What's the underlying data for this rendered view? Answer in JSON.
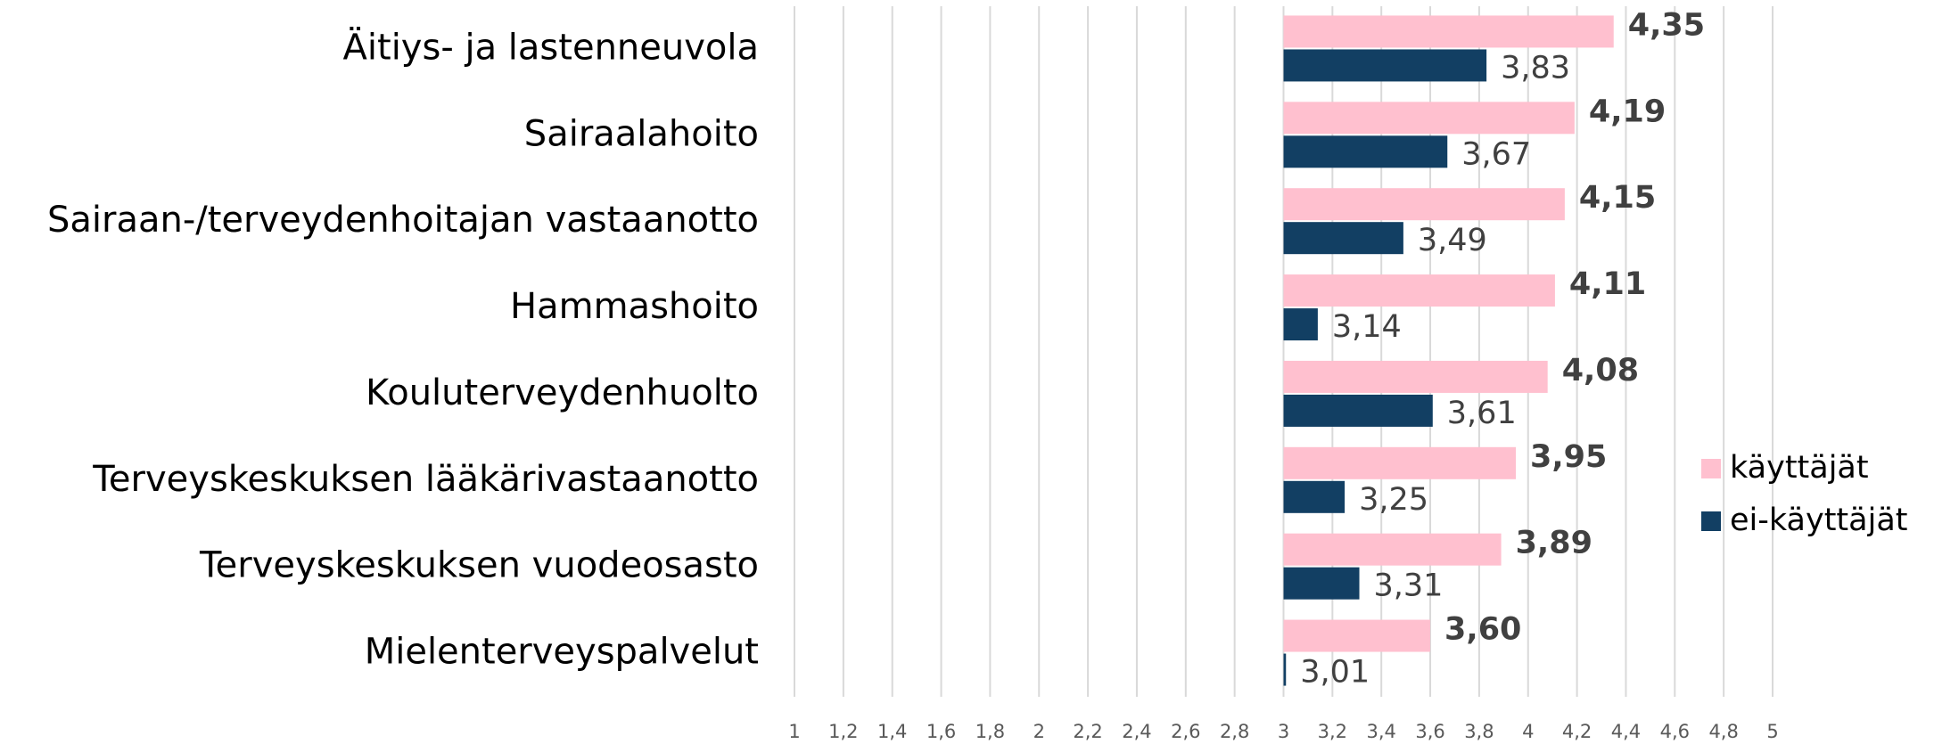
{
  "chart_data": {
    "type": "barh",
    "categories": [
      "Äitiys- ja lastenneuvola",
      "Sairaalahoito",
      "Sairaan-/terveydenhoitajan vastaanotto",
      "Hammashoito",
      "Kouluterveydenhuolto",
      "Terveyskeskuksen lääkärivastaanotto",
      "Terveyskeskuksen vuodeosasto",
      "Mielenterveyspalvelut"
    ],
    "series": [
      {
        "name": "käyttäjät",
        "color": "#ffc0cf",
        "values": [
          4.35,
          4.19,
          4.15,
          4.11,
          4.08,
          3.95,
          3.89,
          3.6
        ],
        "value_labels": [
          "4,35",
          "4,19",
          "4,15",
          "4,11",
          "4,08",
          "3,95",
          "3,89",
          "3,60"
        ]
      },
      {
        "name": "ei-käyttäjät",
        "color": "#123f63",
        "values": [
          3.83,
          3.67,
          3.49,
          3.14,
          3.61,
          3.25,
          3.31,
          3.01
        ],
        "value_labels": [
          "3,83",
          "3,67",
          "3,49",
          "3,14",
          "3,61",
          "3,25",
          "3,31",
          "3,01"
        ]
      }
    ],
    "xlim": [
      1,
      5
    ],
    "x_axis_crosses": 3,
    "xticks": [
      1,
      {
        "value": 1.2,
        "label": "1,2"
      },
      {
        "value": 1.4,
        "label": "1,4"
      },
      {
        "value": 1.6,
        "label": "1,6"
      },
      {
        "value": 1.8,
        "label": "1,8"
      },
      2,
      {
        "value": 2.2,
        "label": "2,2"
      },
      {
        "value": 2.4,
        "label": "2,4"
      },
      {
        "value": 2.6,
        "label": "2,6"
      },
      {
        "value": 2.8,
        "label": "2,8"
      },
      3,
      {
        "value": 3.2,
        "label": "3,2"
      },
      {
        "value": 3.4,
        "label": "3,4"
      },
      {
        "value": 3.6,
        "label": "3,6"
      },
      {
        "value": 3.8,
        "label": "3,8"
      },
      4,
      {
        "value": 4.2,
        "label": "4,2"
      },
      {
        "value": 4.4,
        "label": "4,4"
      },
      {
        "value": 4.6,
        "label": "4,6"
      },
      {
        "value": 4.8,
        "label": "4,8"
      },
      5
    ],
    "grid": true,
    "legend": "right"
  }
}
